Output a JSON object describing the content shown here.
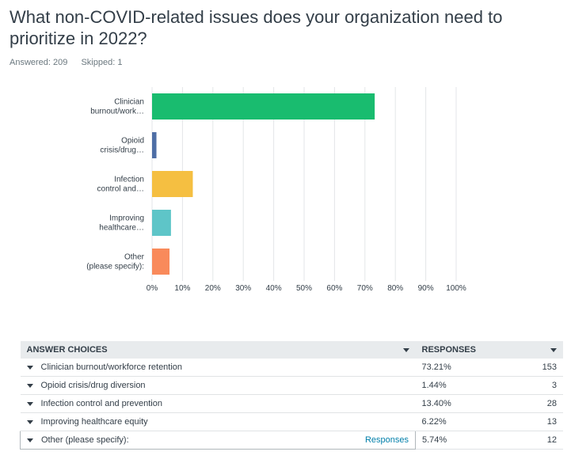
{
  "question": {
    "title": "What non-COVID-related issues does your organization need to prioritize in 2022?",
    "answered": "Answered: 209",
    "skipped": "Skipped: 1"
  },
  "chart_data": {
    "type": "bar",
    "orientation": "horizontal",
    "categories": [
      "Clinician burnout/work…",
      "Opioid crisis/drug…",
      "Infection control and…",
      "Improving healthcare…",
      "Other (please specify):"
    ],
    "values": [
      73.21,
      1.44,
      13.4,
      6.22,
      5.74
    ],
    "colors": [
      "#19bc6f",
      "#4e6ea5",
      "#f5bf41",
      "#5ec5c8",
      "#f98a5b"
    ],
    "xlim": [
      0,
      100
    ],
    "xticks": [
      "0%",
      "10%",
      "20%",
      "30%",
      "40%",
      "50%",
      "60%",
      "70%",
      "80%",
      "90%",
      "100%"
    ],
    "grid": true
  },
  "table": {
    "header": {
      "choices": "ANSWER CHOICES",
      "responses": "RESPONSES"
    },
    "rows": [
      {
        "label": "Clinician burnout/workforce retention",
        "pct": "73.21%",
        "count": "153"
      },
      {
        "label": "Opioid crisis/drug diversion",
        "pct": "1.44%",
        "count": "3"
      },
      {
        "label": "Infection control and prevention",
        "pct": "13.40%",
        "count": "28"
      },
      {
        "label": "Improving healthcare equity",
        "pct": "6.22%",
        "count": "13"
      },
      {
        "label": "Other (please specify):",
        "pct": "5.74%",
        "count": "12",
        "link": "Responses"
      }
    ]
  }
}
